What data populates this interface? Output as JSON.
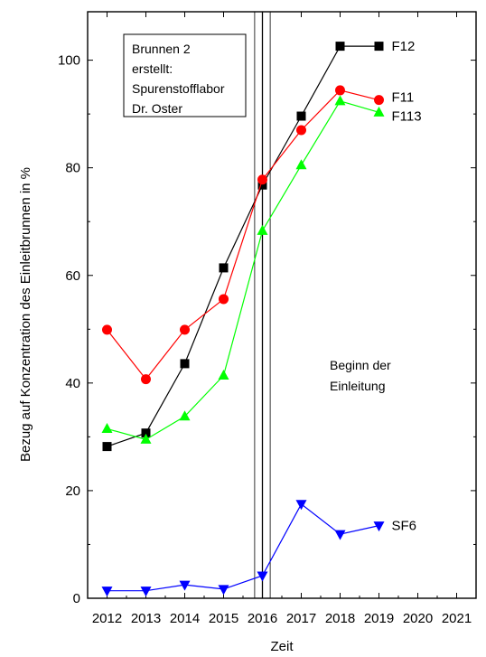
{
  "chart_data": {
    "type": "line",
    "title": "",
    "xlabel": "Zeit",
    "ylabel": "Bezug auf Konzentration des Einleitbrunnen in %",
    "xlim": [
      2011.5,
      2021.5
    ],
    "ylim": [
      0,
      109
    ],
    "x_ticks": [
      2012,
      2013,
      2014,
      2015,
      2016,
      2017,
      2018,
      2019,
      2020,
      2021
    ],
    "y_ticks": [
      0,
      20,
      40,
      60,
      80,
      100
    ],
    "grid": false,
    "series": [
      {
        "name": "F12",
        "color": "#000000",
        "marker": "square",
        "x": [
          2012,
          2013,
          2014,
          2015,
          2016,
          2017,
          2018,
          2019
        ],
        "y": [
          28.2,
          30.7,
          43.6,
          61.4,
          76.8,
          89.6,
          102.6,
          102.6
        ]
      },
      {
        "name": "F11",
        "color": "#ff0000",
        "marker": "circle",
        "x": [
          2012,
          2013,
          2014,
          2015,
          2016,
          2017,
          2018,
          2019
        ],
        "y": [
          49.9,
          40.7,
          49.9,
          55.6,
          77.8,
          87.0,
          94.4,
          92.6
        ]
      },
      {
        "name": "F113",
        "color": "#00ff00",
        "marker": "triangle-up",
        "x": [
          2012,
          2013,
          2014,
          2015,
          2016,
          2017,
          2018,
          2019
        ],
        "y": [
          31.5,
          29.5,
          33.8,
          41.4,
          68.3,
          80.5,
          92.4,
          90.3
        ]
      },
      {
        "name": "SF6",
        "color": "#0000ff",
        "marker": "triangle-down",
        "x": [
          2012,
          2013,
          2014,
          2015,
          2016,
          2017,
          2018,
          2019
        ],
        "y": [
          1.4,
          1.4,
          2.5,
          1.7,
          4.2,
          17.5,
          11.9,
          13.5
        ]
      }
    ],
    "vertical_lines": [
      2015.8,
      2016.0,
      2016.2
    ],
    "annotation_box": [
      "Brunnen 2",
      "erstellt:",
      "Spurenstofflabor",
      "Dr. Oster"
    ],
    "annotation_text": [
      "Beginn der",
      "Einleitung"
    ]
  }
}
